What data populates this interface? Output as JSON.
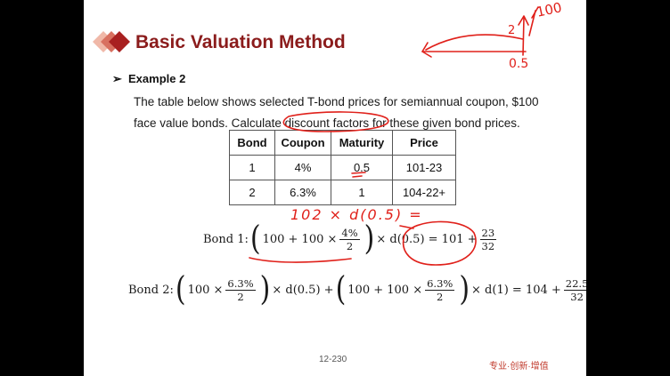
{
  "slide": {
    "title": "Basic Valuation Method",
    "example_label": "Example 2",
    "bullet_glyph": "➢",
    "paragraph": "The table below shows selected T-bond prices for semiannual coupon, $100 face value bonds. Calculate discount factors for these given bond prices.",
    "table": {
      "headers": [
        "Bond",
        "Coupon",
        "Maturity",
        "Price"
      ],
      "rows": [
        [
          "1",
          "4%",
          "0.5",
          "101-23"
        ],
        [
          "2",
          "6.3%",
          "1",
          "104-22+"
        ]
      ]
    },
    "bond1": {
      "label": "Bond 1:",
      "open_paren": "(",
      "close_paren": ")",
      "term1": "100 + 100 ×",
      "frac_num": "4%",
      "frac_den": "2",
      "after": "× d(0.5) = 101 +",
      "rhs_num": "23",
      "rhs_den": "32"
    },
    "bond2": {
      "label": "Bond 2:",
      "open_paren": "(",
      "close_paren": ")",
      "p1_term": "100 ×",
      "p1_num": "6.3%",
      "p1_den": "2",
      "mid": "× d(0.5) +",
      "p2_term": "100 + 100 ×",
      "p2_num": "6.3%",
      "p2_den": "2",
      "after": "× d(1) = 104 +",
      "rhs_num": "22.5",
      "rhs_den": "32"
    },
    "page_number": "12-230",
    "footer_text": "专业·创新·增值"
  },
  "annotations": {
    "ink_color": "#e0201a",
    "handwriting_top": "100",
    "handwriting_two": "2",
    "handwriting_half": "0.5",
    "handwriting_eq": "102 × d(0.5) ="
  }
}
